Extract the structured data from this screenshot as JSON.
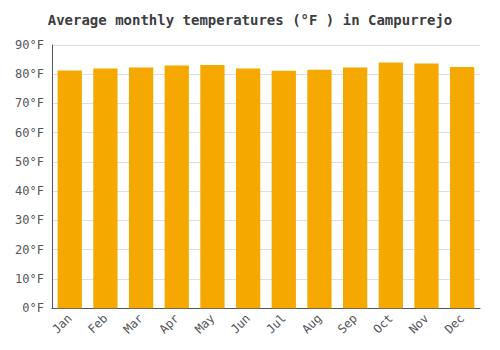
{
  "chart_data": {
    "type": "bar",
    "title": "Average monthly temperatures (°F ) in Campurrejo",
    "categories": [
      "Jan",
      "Feb",
      "Mar",
      "Apr",
      "May",
      "Jun",
      "Jul",
      "Aug",
      "Sep",
      "Oct",
      "Nov",
      "Dec"
    ],
    "values": [
      81.3,
      82.0,
      82.3,
      83.0,
      83.2,
      82.0,
      81.2,
      81.5,
      82.3,
      84.0,
      83.7,
      82.5
    ],
    "color": "#F5A800",
    "ylim": [
      0,
      90
    ],
    "yticks": [
      {
        "value": 0,
        "label": "0°F"
      },
      {
        "value": 10,
        "label": "10°F"
      },
      {
        "value": 20,
        "label": "20°F"
      },
      {
        "value": 30,
        "label": "30°F"
      },
      {
        "value": 40,
        "label": "40°F"
      },
      {
        "value": 50,
        "label": "50°F"
      },
      {
        "value": 60,
        "label": "60°F"
      },
      {
        "value": 70,
        "label": "70°F"
      },
      {
        "value": 80,
        "label": "80°F"
      },
      {
        "value": 90,
        "label": "90°F"
      }
    ],
    "grid": true
  }
}
